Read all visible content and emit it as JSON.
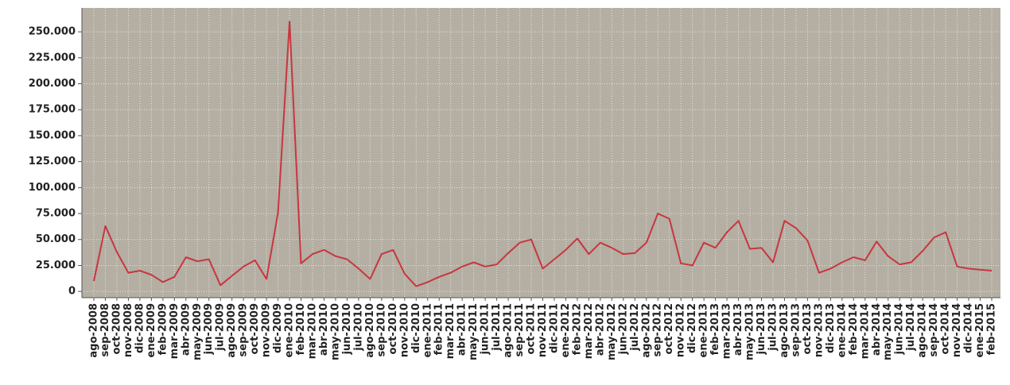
{
  "chart_data": {
    "type": "line",
    "categories": [
      "ago-2008",
      "sep-2008",
      "oct-2008",
      "nov-2008",
      "dic-2008",
      "ene-2009",
      "feb-2009",
      "mar-2009",
      "abr-2009",
      "may-2009",
      "jun-2009",
      "jul-2009",
      "ago-2009",
      "sep-2009",
      "oct-2009",
      "nov-2009",
      "dic-2009",
      "ene-2010",
      "feb-2010",
      "mar-2010",
      "abr-2010",
      "may-2010",
      "jun-2010",
      "jul-2010",
      "ago-2010",
      "sep-2010",
      "oct-2010",
      "nov-2010",
      "dic-2010",
      "ene-2011",
      "feb-2011",
      "mar-2011",
      "abr-2011",
      "may-2011",
      "jun-2011",
      "jul-2011",
      "ago-2011",
      "sep-2011",
      "oct-2011",
      "nov-2011",
      "dic-2011",
      "ene-2012",
      "feb-2012",
      "mar-2012",
      "abr-2012",
      "may-2012",
      "jun-2012",
      "jul-2012",
      "ago-2012",
      "sep-2012",
      "oct-2012",
      "nov-2012",
      "dic-2012",
      "ene-2013",
      "feb-2013",
      "mar-2013",
      "abr-2013",
      "may-2013",
      "jun-2013",
      "jul-2013",
      "ago-2013",
      "sep-2013",
      "oct-2013",
      "nov-2013",
      "dic-2013",
      "ene-2014",
      "feb-2014",
      "mar-2014",
      "abr-2014",
      "may-2014",
      "jun-2014",
      "jul-2014",
      "ago-2014",
      "sep-2014",
      "oct-2014",
      "nov-2014",
      "dic-2014",
      "ene-2015",
      "feb-2015"
    ],
    "values": [
      10000,
      63000,
      38000,
      18000,
      20000,
      16000,
      9000,
      14000,
      33000,
      29000,
      31000,
      6000,
      15000,
      24000,
      30000,
      12000,
      76000,
      260000,
      27000,
      36000,
      40000,
      34000,
      31000,
      22000,
      12000,
      36000,
      40000,
      17000,
      5000,
      9000,
      14000,
      18000,
      24000,
      28000,
      24000,
      26000,
      37000,
      47000,
      50000,
      22000,
      31000,
      40000,
      51000,
      36000,
      47000,
      42000,
      36000,
      37000,
      47000,
      75000,
      70000,
      27000,
      25000,
      47000,
      42000,
      57000,
      68000,
      41000,
      42000,
      28000,
      68000,
      61000,
      49000,
      18000,
      22000,
      28000,
      33000,
      30000,
      48000,
      34000,
      26000,
      28000,
      39000,
      52000,
      57000,
      24000,
      22000,
      21000,
      20000
    ],
    "color": "#c8363f",
    "ylim": [
      -6000,
      273000
    ],
    "yticks": [
      0,
      {
        "value": 25000,
        "label": "25.000"
      },
      {
        "value": 50000,
        "label": "50.000"
      },
      {
        "value": 75000,
        "label": "75.000"
      },
      {
        "value": 100000,
        "label": "100.000"
      },
      {
        "value": 125000,
        "label": "125.000"
      },
      {
        "value": 150000,
        "label": "150.000"
      },
      {
        "value": 175000,
        "label": "175.000"
      },
      {
        "value": 200000,
        "label": "200.000"
      },
      {
        "value": 225000,
        "label": "225.000"
      },
      {
        "value": 250000,
        "label": "250.000"
      }
    ],
    "grid": true
  }
}
